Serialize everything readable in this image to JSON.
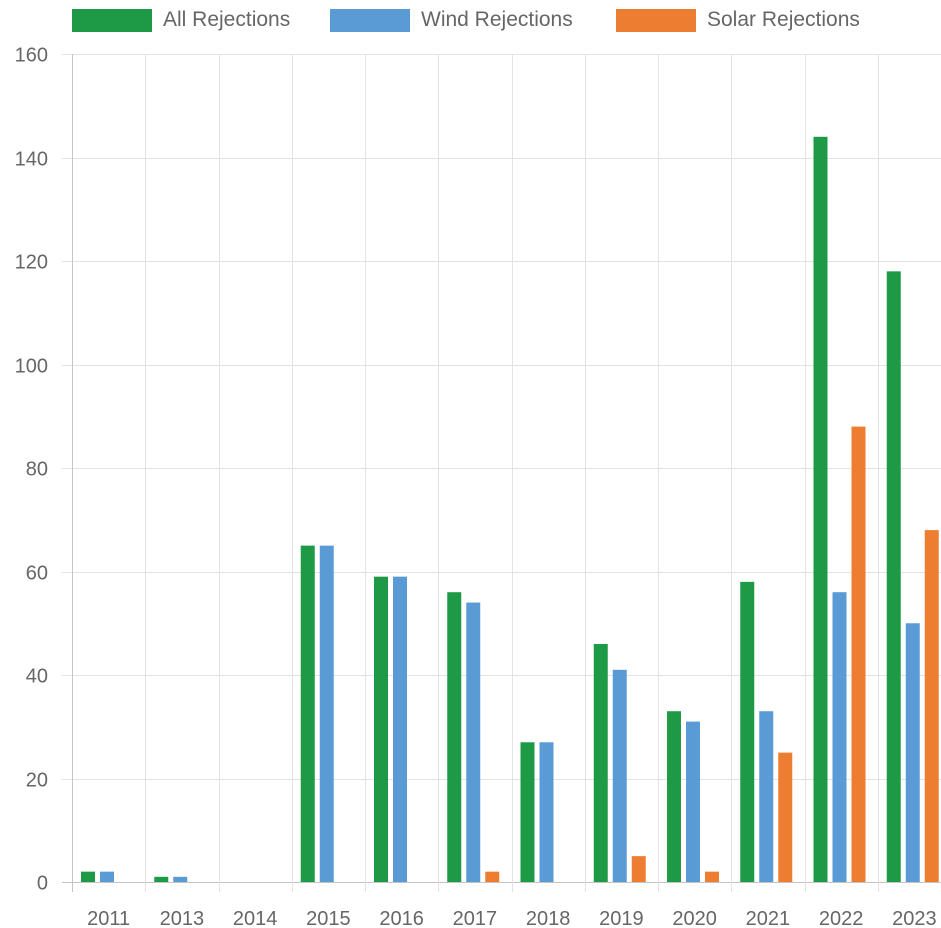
{
  "chart_data": {
    "type": "bar",
    "categories": [
      "2011",
      "2013",
      "2014",
      "2015",
      "2016",
      "2017",
      "2018",
      "2019",
      "2020",
      "2021",
      "2022",
      "2023"
    ],
    "series": [
      {
        "name": "All Rejections",
        "color": "#1e9a47",
        "values": [
          2,
          1,
          0,
          65,
          59,
          56,
          27,
          46,
          33,
          58,
          144,
          118
        ]
      },
      {
        "name": "Wind Rejections",
        "color": "#5b9bd5",
        "values": [
          2,
          1,
          0,
          65,
          59,
          54,
          27,
          41,
          31,
          33,
          56,
          50
        ]
      },
      {
        "name": "Solar Rejections",
        "color": "#ed7d31",
        "values": [
          0,
          0,
          0,
          0,
          0,
          2,
          0,
          5,
          2,
          25,
          88,
          68
        ]
      }
    ],
    "yticks": [
      "0",
      "20",
      "40",
      "60",
      "80",
      "100",
      "120",
      "140",
      "160"
    ],
    "ylim": [
      0,
      160
    ],
    "grid": true,
    "legend_position": "top"
  }
}
